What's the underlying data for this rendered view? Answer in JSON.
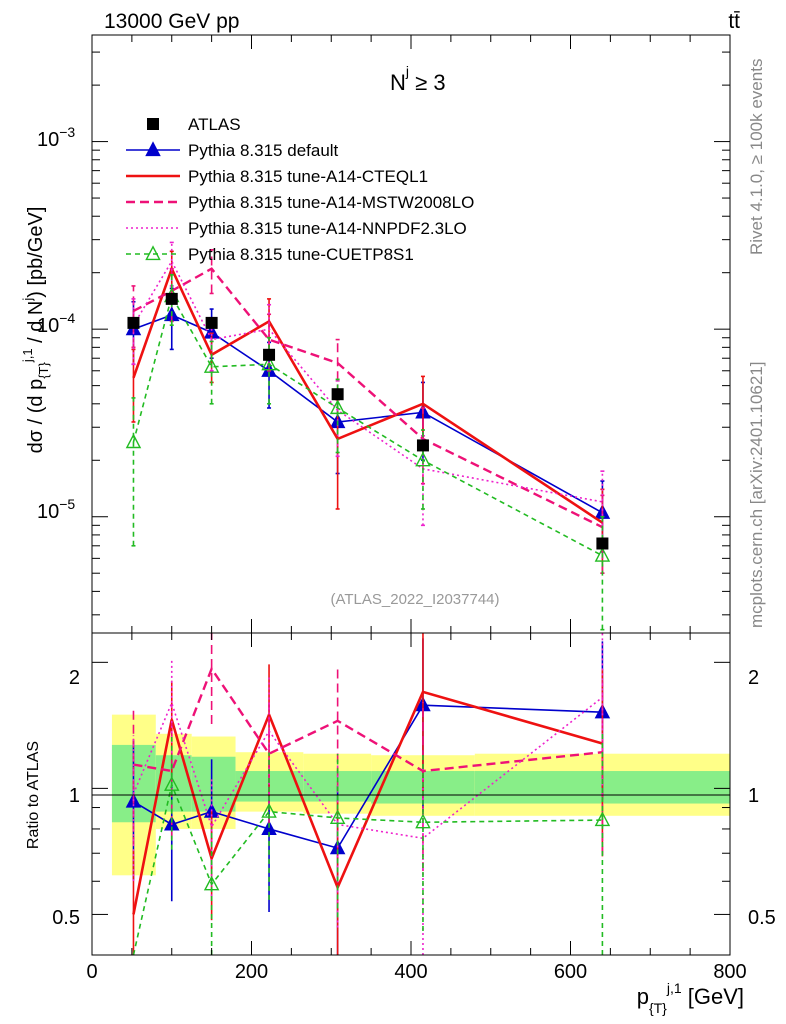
{
  "header": {
    "left": "13000 GeV pp",
    "right": "tt̄"
  },
  "side_labels": {
    "upper": "Rivet 4.1.0, ≥ 100k events",
    "lower": "mcplots.cern.ch [arXiv:2401.10621]"
  },
  "main_panel": {
    "annotation": "N",
    "annotation_sup": "j",
    "annotation_rest": " ≥ 3",
    "watermark": "(ATLAS_2022_I2037744)",
    "ylabel": "dσ / (d p^{j,1}_{T} / d N^{j}) [pb/GeV]",
    "ytick_labels": [
      "10",
      "10",
      "10"
    ],
    "ytick_exps": [
      "−3",
      "−4",
      "−5"
    ]
  },
  "ratio_panel": {
    "ylabel": "Ratio to ATLAS",
    "ytick_labels": [
      "2",
      "1",
      "0.5"
    ],
    "ytick_labels_right": [
      "2",
      "1",
      "0.5"
    ]
  },
  "x_axis": {
    "tick_labels": [
      "0",
      "200",
      "400",
      "600",
      "800"
    ],
    "label": "p^{j,1}_{T} [GeV]"
  },
  "colors": {
    "atlas": "#000000",
    "default": "#0000cc",
    "cteql1": "#ee1111",
    "mstw": "#ee1177",
    "nnpdf": "#ee22cc",
    "cuetp": "#22bb22",
    "band_yellow": "#ffff88",
    "band_green": "#88ee88"
  },
  "chart_data": {
    "type": "line",
    "title": "N^j ≥ 3",
    "xlabel": "p_T^{j,1} [GeV]",
    "ylabel": "dσ / (d p_T^{j,1} / d N^j) [pb/GeV]",
    "x": [
      52,
      100,
      150,
      222,
      308,
      415,
      640
    ],
    "xlim": [
      0,
      800
    ],
    "ylim": [
      2.4e-06,
      0.0037
    ],
    "ratio_ylim": [
      0.4,
      2.35
    ],
    "yscale": "log",
    "legend_position": "top-left",
    "data": {
      "name": "ATLAS",
      "values": [
        0.000108,
        0.000145,
        0.000108,
        7.3e-05,
        4.5e-05,
        2.4e-05,
        7.2e-06
      ],
      "bins": [
        [
          25,
          80
        ],
        [
          80,
          125
        ],
        [
          125,
          180
        ],
        [
          180,
          265
        ],
        [
          265,
          350
        ],
        [
          350,
          480
        ],
        [
          480,
          800
        ]
      ],
      "band_yellow": [
        [
          0.62,
          1.5
        ],
        [
          0.8,
          1.35
        ],
        [
          0.8,
          1.33
        ],
        [
          0.88,
          1.22
        ],
        [
          0.87,
          1.21
        ],
        [
          0.86,
          1.2
        ],
        [
          0.86,
          1.21
        ]
      ],
      "band_green": [
        [
          0.83,
          1.27
        ],
        [
          0.88,
          1.2
        ],
        [
          0.88,
          1.19
        ],
        [
          0.93,
          1.1
        ],
        [
          0.93,
          1.1
        ],
        [
          0.92,
          1.1
        ],
        [
          0.92,
          1.1
        ]
      ]
    },
    "series": [
      {
        "name": "Pythia 8.315 default",
        "key": "default",
        "marker": "triangle-filled",
        "dash": "",
        "values": [
          0.0001,
          0.000119,
          9.6e-05,
          6e-05,
          3.2e-05,
          3.6e-05,
          1.05e-05
        ],
        "err_lo": [
          6.5e-05,
          7.8e-05,
          7e-05,
          3.8e-05,
          1.7e-05,
          2e-05,
          6.5e-06
        ],
        "err_hi": [
          0.00014,
          0.000165,
          0.000128,
          8.5e-05,
          4.5e-05,
          5.2e-05,
          1.55e-05
        ],
        "ratio": [
          0.93,
          0.82,
          0.88,
          0.8,
          0.72,
          1.58,
          1.52
        ]
      },
      {
        "name": "Pythia 8.315 tune-A14-CTEQL1",
        "key": "cteql1",
        "marker": "",
        "dash": "",
        "values": [
          5.5e-05,
          0.00021,
          7.3e-05,
          0.00011,
          2.6e-05,
          4e-05,
          9.3e-06
        ],
        "err_lo": [
          3.2e-05,
          0.000155,
          5.2e-05,
          7e-05,
          1.1e-05,
          2.3e-05,
          5e-06
        ],
        "err_hi": [
          7.8e-05,
          0.00026,
          9.5e-05,
          0.000145,
          4.2e-05,
          5.6e-05,
          1.4e-05
        ],
        "ratio": [
          0.5,
          1.46,
          0.68,
          1.5,
          0.58,
          1.7,
          1.28
        ]
      },
      {
        "name": "Pythia 8.315 tune-A14-MSTW2008LO",
        "key": "mstw",
        "marker": "",
        "dash": "9,5",
        "values": [
          0.000125,
          0.00016,
          0.00021,
          8.8e-05,
          6.6e-05,
          2.6e-05,
          8.8e-06
        ],
        "err_lo": [
          8e-05,
          0.00011,
          0.000155,
          6e-05,
          4.5e-05,
          1.5e-05,
          5e-06
        ],
        "err_hi": [
          0.00017,
          0.00021,
          0.000265,
          0.00012,
          8.8e-05,
          3.8e-05,
          1.3e-05
        ],
        "ratio": [
          1.14,
          1.1,
          1.93,
          1.21,
          1.45,
          1.1,
          1.22
        ]
      },
      {
        "name": "Pythia 8.315 tune-A14-NNPDF2.3LO",
        "key": "nnpdf",
        "marker": "",
        "dash": "2,3",
        "values": [
          0.000105,
          0.00023,
          8.8e-05,
          0.0001,
          3.7e-05,
          1.8e-05,
          1.2e-05
        ],
        "err_lo": [
          6.5e-05,
          0.00017,
          6e-05,
          6.5e-05,
          2.1e-05,
          9e-06,
          7e-06
        ],
        "err_hi": [
          0.000145,
          0.00029,
          0.000115,
          0.000135,
          5.3e-05,
          2.7e-05,
          1.75e-05
        ],
        "ratio": [
          0.97,
          1.6,
          0.81,
          1.37,
          0.82,
          0.76,
          1.65
        ]
      },
      {
        "name": "Pythia 8.315 tune-CUETP8S1",
        "key": "cuetp",
        "marker": "triangle-open",
        "dash": "5,4",
        "values": [
          2.5e-05,
          0.00015,
          6.3e-05,
          6.5e-05,
          3.8e-05,
          2e-05,
          6.2e-06
        ],
        "err_lo": [
          7e-06,
          0.000105,
          4e-05,
          4e-05,
          2.2e-05,
          1.1e-05,
          2.5e-06
        ],
        "err_hi": [
          4.3e-05,
          0.000195,
          8.6e-05,
          9e-05,
          5.4e-05,
          2.9e-05,
          1e-05
        ],
        "ratio": [
          0.23,
          1.02,
          0.59,
          0.88,
          0.85,
          0.83,
          0.84
        ]
      }
    ]
  }
}
